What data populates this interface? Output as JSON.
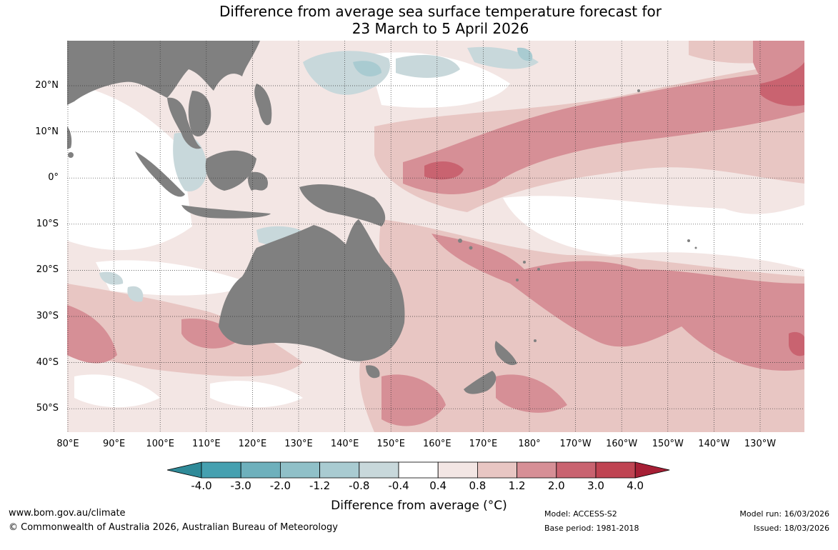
{
  "title_line1": "Difference from average sea surface temperature forecast for",
  "title_line2": "23 March to 5 April 2026",
  "lat_labels": [
    "20°N",
    "10°N",
    "0°",
    "10°S",
    "20°S",
    "30°S",
    "40°S",
    "50°S"
  ],
  "lon_labels": [
    "80°E",
    "90°E",
    "100°E",
    "110°E",
    "120°E",
    "130°E",
    "140°E",
    "150°E",
    "160°E",
    "170°E",
    "180°",
    "170°W",
    "160°W",
    "150°W",
    "140°W",
    "130°W"
  ],
  "colorbar": {
    "ticks": [
      "-4.0",
      "-3.0",
      "-2.0",
      "-1.2",
      "-0.8",
      "-0.4",
      "0.4",
      "0.8",
      "1.2",
      "2.0",
      "3.0",
      "4.0"
    ],
    "colors": [
      "#2f8a98",
      "#45a0b0",
      "#6eb0bc",
      "#90c0c8",
      "#a9cbd1",
      "#c8d8db",
      "#ffffff",
      "#f3e6e4",
      "#e8c6c3",
      "#d68f96",
      "#c96370",
      "#bf4452",
      "#a61f35"
    ],
    "label": "Difference from average (°C)"
  },
  "land_color": "#808080",
  "footer": {
    "website": "www.bom.gov.au/climate",
    "copyright": "© Commonwealth of Australia 2026, Australian Bureau of Meteorology",
    "model": "Model: ACCESS-S2",
    "base_period": "Base period: 1981-2018",
    "model_run": "Model run: 16/03/2026",
    "issued": "Issued: 18/03/2026"
  }
}
